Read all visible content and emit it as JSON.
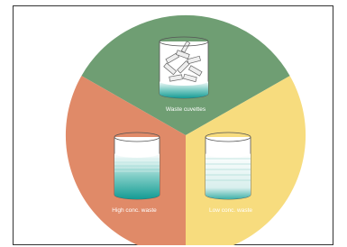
{
  "sections": [
    {
      "label": "Waste cuvettes"
    },
    {
      "label": "High conc. waste"
    },
    {
      "label": "Low conc. waste"
    }
  ]
}
